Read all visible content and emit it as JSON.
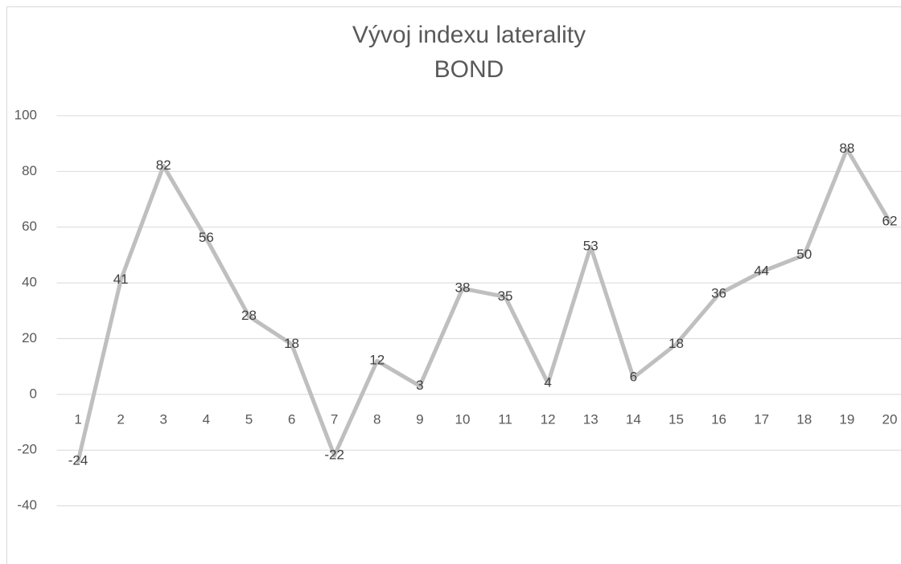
{
  "chart_data": {
    "type": "line",
    "title": "Vývoj indexu laterality",
    "subtitle": "BOND",
    "categories": [
      1,
      2,
      3,
      4,
      5,
      6,
      7,
      8,
      9,
      10,
      11,
      12,
      13,
      14,
      15,
      16,
      17,
      18,
      19,
      20
    ],
    "values": [
      -24,
      41,
      82,
      56,
      28,
      18,
      -22,
      12,
      3,
      38,
      35,
      4,
      53,
      6,
      18,
      36,
      44,
      50,
      88,
      62
    ],
    "color": "#bfbfbf",
    "ylim": [
      -60,
      100
    ],
    "yticks": [
      -40,
      -20,
      0,
      20,
      40,
      60,
      80,
      100
    ],
    "grid": true
  }
}
